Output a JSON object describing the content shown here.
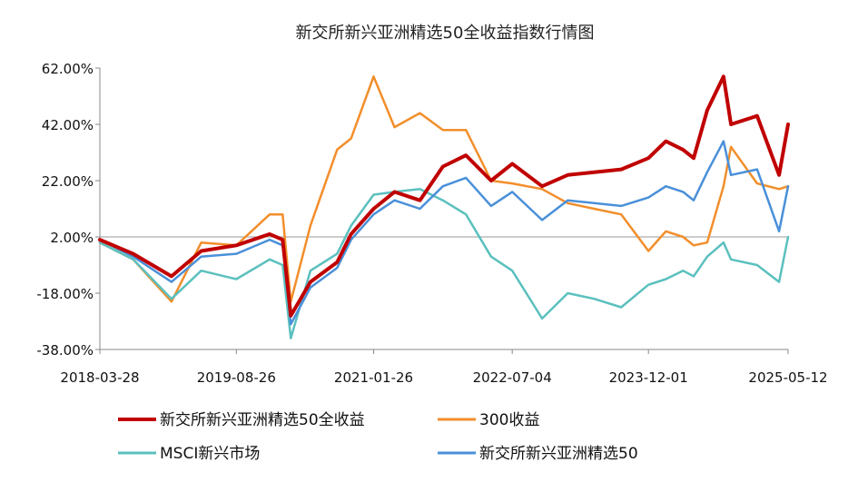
{
  "chart_data": {
    "type": "line",
    "title": "新交所新兴亚洲精选50全收益指数行情图",
    "xlabel": "",
    "ylabel": "",
    "x_ticks": [
      "2018-03-28",
      "2019-08-26",
      "2021-01-26",
      "2022-07-04",
      "2023-12-01",
      "2025-05-12"
    ],
    "y_ticks": [
      "62.00%",
      "42.00%",
      "22.00%",
      "2.00%",
      "-18.00%",
      "-38.00%"
    ],
    "ylim": [
      -38,
      62
    ],
    "grid": false,
    "legend_position": "bottom",
    "x": [
      "2018-03-28",
      "2018-08-01",
      "2018-12-24",
      "2019-04-15",
      "2019-08-26",
      "2019-12-30",
      "2020-02-17",
      "2020-03-19",
      "2020-06-01",
      "2020-09-10",
      "2020-11-02",
      "2021-01-26",
      "2021-04-15",
      "2021-07-20",
      "2021-10-15",
      "2022-01-10",
      "2022-04-15",
      "2022-07-04",
      "2022-10-25",
      "2023-01-30",
      "2023-05-10",
      "2023-08-20",
      "2023-12-01",
      "2024-02-05",
      "2024-04-10",
      "2024-05-20",
      "2024-07-10",
      "2024-09-10",
      "2024-10-08",
      "2025-01-15",
      "2025-04-08",
      "2025-05-12"
    ],
    "series": [
      {
        "name": "新交所新兴亚洲精选50全收益",
        "color": "#c00000",
        "values": [
          1,
          -4,
          -12,
          -3,
          -1,
          3,
          1,
          -26,
          -14,
          -7,
          3,
          12,
          18,
          15,
          27,
          31,
          22,
          28,
          20,
          24,
          25,
          26,
          30,
          36,
          33,
          30,
          47,
          59,
          42,
          45,
          24,
          42
        ]
      },
      {
        "name": "300收益",
        "color": "#f28e2b",
        "values": [
          0,
          -6,
          -21,
          0,
          -1,
          10,
          10,
          -21,
          6,
          33,
          37,
          59,
          41,
          46,
          40,
          40,
          22,
          21,
          19,
          14,
          12,
          10,
          -3,
          4,
          2,
          -1,
          0,
          20,
          34,
          21,
          19,
          20
        ]
      },
      {
        "name": "MSCI新兴市场",
        "color": "#5bc0be",
        "values": [
          0,
          -6,
          -20,
          -10,
          -13,
          -6,
          -8,
          -34,
          -10,
          -4,
          6,
          17,
          18,
          19,
          15,
          10,
          -5,
          -10,
          -27,
          -18,
          -20,
          -23,
          -15,
          -13,
          -10,
          -12,
          -5,
          0,
          -6,
          -8,
          -14,
          2
        ]
      },
      {
        "name": "新交所新兴亚洲精选50",
        "color": "#4a90d9",
        "values": [
          1,
          -5,
          -14,
          -5,
          -4,
          1,
          -1,
          -29,
          -16,
          -9,
          1,
          10,
          15,
          12,
          20,
          23,
          13,
          18,
          8,
          15,
          14,
          13,
          16,
          20,
          18,
          15,
          25,
          36,
          24,
          26,
          4,
          20
        ]
      }
    ]
  }
}
